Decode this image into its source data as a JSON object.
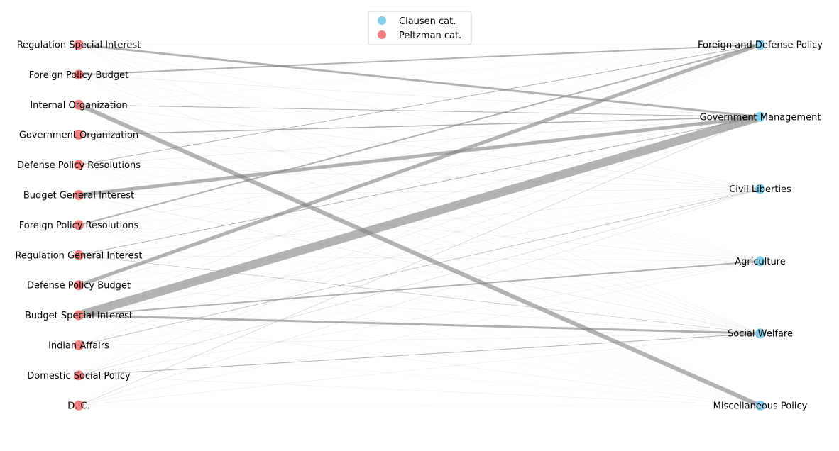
{
  "legend": {
    "items": [
      {
        "label": "Clausen cat.",
        "color": "#87ceeb"
      },
      {
        "label": "Peltzman cat.",
        "color": "#f08080"
      }
    ]
  },
  "colors": {
    "clausen": "#87ceeb",
    "peltzman": "#f08080",
    "edge": "#808080"
  },
  "peltzman_nodes": [
    "Regulation Special Interest",
    "Foreign Policy Budget",
    "Internal Organization",
    "Government Organization",
    "Defense Policy Resolutions",
    "Budget General Interest",
    "Foreign Policy Resolutions",
    "Regulation General Interest",
    "Defense Policy Budget",
    "Budget Special Interest",
    "Indian Affairs",
    "Domestic Social Policy",
    "D. C."
  ],
  "clausen_nodes": [
    "Foreign and Defense Policy",
    "Government Management",
    "Civil Liberties",
    "Agriculture",
    "Social Welfare",
    "Miscellaneous Policy"
  ],
  "edges": [
    {
      "from": "Budget Special Interest",
      "to": "Government Management",
      "weight": 12
    },
    {
      "from": "Internal Organization",
      "to": "Miscellaneous Policy",
      "weight": 6
    },
    {
      "from": "Defense Policy Budget",
      "to": "Foreign and Defense Policy",
      "weight": 5
    },
    {
      "from": "Budget General Interest",
      "to": "Government Management",
      "weight": 5
    },
    {
      "from": "Regulation Special Interest",
      "to": "Government Management",
      "weight": 3
    },
    {
      "from": "Budget Special Interest",
      "to": "Social Welfare",
      "weight": 3
    },
    {
      "from": "Foreign Policy Budget",
      "to": "Foreign and Defense Policy",
      "weight": 2
    },
    {
      "from": "Budget Special Interest",
      "to": "Agriculture",
      "weight": 2
    },
    {
      "from": "Foreign Policy Resolutions",
      "to": "Foreign and Defense Policy",
      "weight": 2
    },
    {
      "from": "Government Organization",
      "to": "Government Management",
      "weight": 1.5
    },
    {
      "from": "Internal Organization",
      "to": "Government Management",
      "weight": 1
    },
    {
      "from": "Defense Policy Resolutions",
      "to": "Foreign and Defense Policy",
      "weight": 1
    },
    {
      "from": "Regulation General Interest",
      "to": "Government Management",
      "weight": 1
    },
    {
      "from": "Domestic Social Policy",
      "to": "Social Welfare",
      "weight": 1
    },
    {
      "from": "Indian Affairs",
      "to": "Civil Liberties",
      "weight": 0.8
    },
    {
      "from": "Regulation General Interest",
      "to": "Social Welfare",
      "weight": 0.6
    },
    {
      "from": "D. C.",
      "to": "Government Management",
      "weight": 0.5
    },
    {
      "from": "Domestic Social Policy",
      "to": "Civil Liberties",
      "weight": 0.4
    },
    {
      "from": "Budget General Interest",
      "to": "Social Welfare",
      "weight": 0.3
    },
    {
      "from": "D. C.",
      "to": "Civil Liberties",
      "weight": 0.3
    },
    {
      "from": "Regulation Special Interest",
      "to": "Foreign and Defense Policy",
      "weight": 0.2
    },
    {
      "from": "Foreign Policy Budget",
      "to": "Government Management",
      "weight": 0.2
    },
    {
      "from": "Internal Organization",
      "to": "Civil Liberties",
      "weight": 0.15
    },
    {
      "from": "Government Organization",
      "to": "Civil Liberties",
      "weight": 0.15
    },
    {
      "from": "Defense Policy Resolutions",
      "to": "Government Management",
      "weight": 0.2
    },
    {
      "from": "Budget General Interest",
      "to": "Civil Liberties",
      "weight": 0.15
    },
    {
      "from": "Budget General Interest",
      "to": "Agriculture",
      "weight": 0.15
    },
    {
      "from": "Foreign Policy Resolutions",
      "to": "Government Management",
      "weight": 0.15
    },
    {
      "from": "Regulation General Interest",
      "to": "Agriculture",
      "weight": 0.15
    },
    {
      "from": "Regulation General Interest",
      "to": "Civil Liberties",
      "weight": 0.15
    },
    {
      "from": "Defense Policy Budget",
      "to": "Government Management",
      "weight": 0.2
    },
    {
      "from": "Budget Special Interest",
      "to": "Civil Liberties",
      "weight": 0.2
    },
    {
      "from": "Budget Special Interest",
      "to": "Foreign and Defense Policy",
      "weight": 0.2
    },
    {
      "from": "Indian Affairs",
      "to": "Government Management",
      "weight": 0.2
    },
    {
      "from": "Indian Affairs",
      "to": "Social Welfare",
      "weight": 0.15
    },
    {
      "from": "Domestic Social Policy",
      "to": "Government Management",
      "weight": 0.2
    },
    {
      "from": "Domestic Social Policy",
      "to": "Agriculture",
      "weight": 0.15
    },
    {
      "from": "D. C.",
      "to": "Social Welfare",
      "weight": 0.15
    },
    {
      "from": "D. C.",
      "to": "Agriculture",
      "weight": 0.12
    },
    {
      "from": "D. C.",
      "to": "Foreign and Defense Policy",
      "weight": 0.12
    },
    {
      "from": "Regulation Special Interest",
      "to": "Social Welfare",
      "weight": 0.12
    },
    {
      "from": "Regulation Special Interest",
      "to": "Civil Liberties",
      "weight": 0.12
    },
    {
      "from": "Internal Organization",
      "to": "Social Welfare",
      "weight": 0.12
    },
    {
      "from": "Government Organization",
      "to": "Social Welfare",
      "weight": 0.12
    },
    {
      "from": "Defense Policy Resolutions",
      "to": "Civil Liberties",
      "weight": 0.12
    },
    {
      "from": "Foreign Policy Budget",
      "to": "Social Welfare",
      "weight": 0.12
    },
    {
      "from": "Regulation General Interest",
      "to": "Foreign and Defense Policy",
      "weight": 0.12
    },
    {
      "from": "Defense Policy Budget",
      "to": "Social Welfare",
      "weight": 0.12
    },
    {
      "from": "Domestic Social Policy",
      "to": "Miscellaneous Policy",
      "weight": 0.1
    },
    {
      "from": "Budget Special Interest",
      "to": "Miscellaneous Policy",
      "weight": 0.1
    }
  ]
}
